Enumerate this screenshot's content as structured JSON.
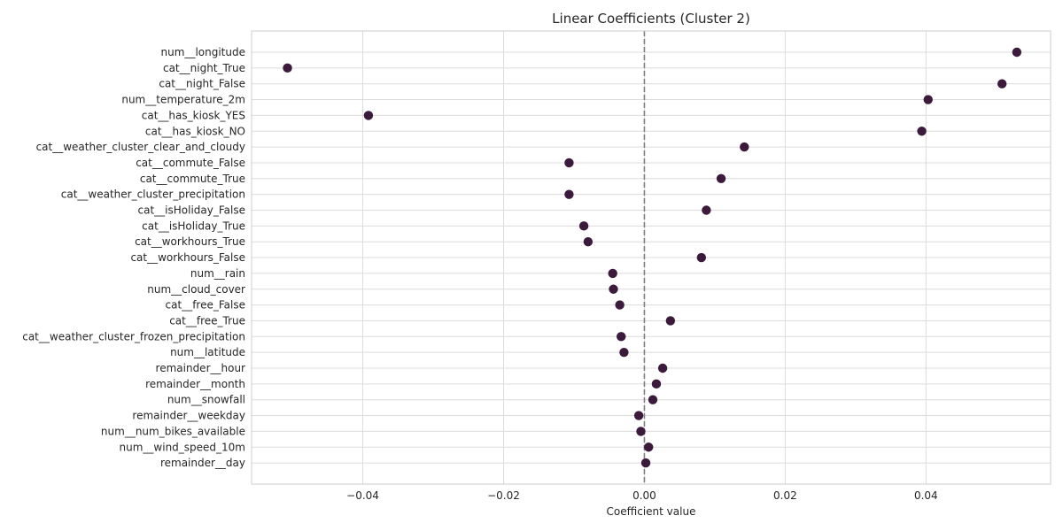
{
  "chart_data": {
    "type": "scatter",
    "title": "Linear Coefficients (Cluster 2)",
    "xlabel": "Coefficient value",
    "ylabel": "",
    "xlim": [
      -0.0558,
      0.0577
    ],
    "xticks": [
      -0.04,
      -0.02,
      0.0,
      0.02,
      0.04
    ],
    "xtick_labels": [
      "−0.04",
      "−0.02",
      "0.00",
      "0.02",
      "0.04"
    ],
    "grid": true,
    "reference_line": {
      "x": 0.0,
      "style": "dashed"
    },
    "marker_color": "#3b1a3c",
    "categories": [
      "num__longitude",
      "cat__night_True",
      "cat__night_False",
      "num__temperature_2m",
      "cat__has_kiosk_YES",
      "cat__has_kiosk_NO",
      "cat__weather_cluster_clear_and_cloudy",
      "cat__commute_False",
      "cat__commute_True",
      "cat__weather_cluster_precipitation",
      "cat__isHoliday_False",
      "cat__isHoliday_True",
      "cat__workhours_True",
      "cat__workhours_False",
      "num__rain",
      "num__cloud_cover",
      "cat__free_False",
      "cat__free_True",
      "cat__weather_cluster_frozen_precipitation",
      "num__latitude",
      "remainder__hour",
      "remainder__month",
      "num__snowfall",
      "remainder__weekday",
      "num__num_bikes_available",
      "num__wind_speed_10m",
      "remainder__day"
    ],
    "values": [
      0.0529,
      -0.0507,
      0.0508,
      0.0403,
      -0.0392,
      0.0394,
      0.0142,
      -0.0107,
      0.0109,
      -0.0107,
      0.0088,
      -0.0086,
      -0.008,
      0.0081,
      -0.0045,
      -0.0044,
      -0.0035,
      0.0037,
      -0.0033,
      -0.0029,
      0.0026,
      0.0017,
      0.0012,
      -0.0008,
      -0.0005,
      0.0006,
      0.0002
    ]
  }
}
